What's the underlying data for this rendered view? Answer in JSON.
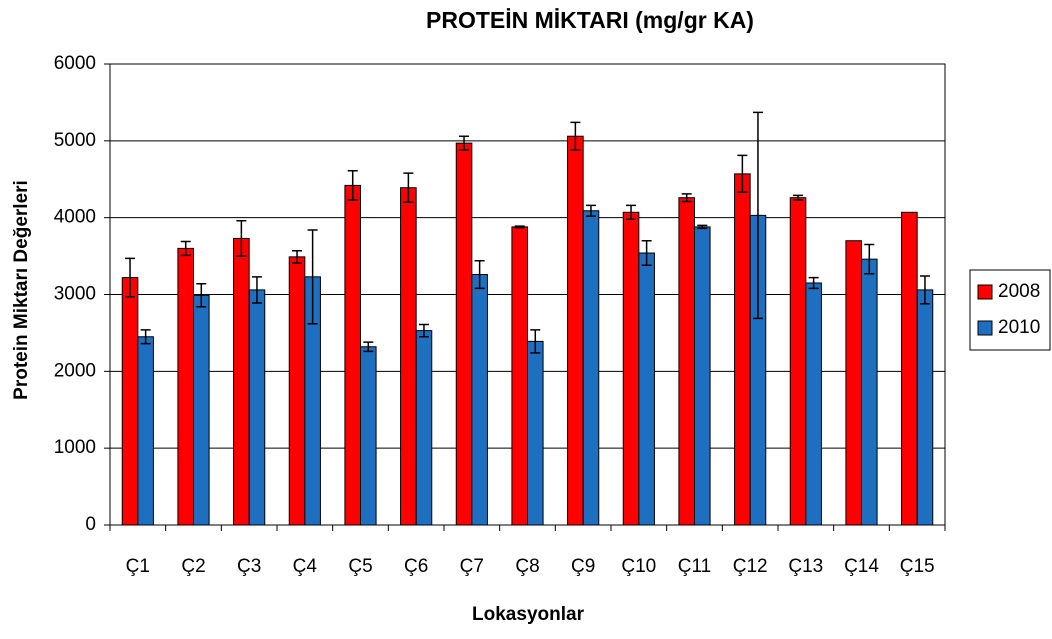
{
  "chart_data": {
    "type": "bar",
    "title": "PROTEİN MİKTARI (mg/gr KA)",
    "xlabel": "Lokasyonlar",
    "ylabel": "Protein Miktarı Değerleri",
    "categories": [
      "Ç1",
      "Ç2",
      "Ç3",
      "Ç4",
      "Ç5",
      "Ç6",
      "Ç7",
      "Ç8",
      "Ç9",
      "Ç10",
      "Ç11",
      "Ç12",
      "Ç13",
      "Ç14",
      "Ç15"
    ],
    "series": [
      {
        "name": "2008",
        "color": "#ff0000",
        "values": [
          3220,
          3600,
          3730,
          3490,
          4420,
          4390,
          4970,
          3880,
          5060,
          4070,
          4260,
          4570,
          4260,
          3700,
          4070
        ],
        "errors": [
          250,
          90,
          230,
          80,
          190,
          190,
          90,
          10,
          180,
          90,
          50,
          240,
          30,
          null,
          null
        ]
      },
      {
        "name": "2010",
        "color": "#1f6fc1",
        "values": [
          2450,
          2990,
          3060,
          3230,
          2320,
          2530,
          3260,
          2390,
          4090,
          3540,
          3880,
          4030,
          3150,
          3460,
          3060
        ],
        "errors": [
          90,
          150,
          170,
          610,
          60,
          80,
          180,
          150,
          70,
          160,
          20,
          1340,
          70,
          190,
          180
        ]
      }
    ],
    "ylim": [
      0,
      6000
    ],
    "yticks": [
      0,
      1000,
      2000,
      3000,
      4000,
      5000,
      6000
    ],
    "grid": true,
    "legend": "right"
  }
}
